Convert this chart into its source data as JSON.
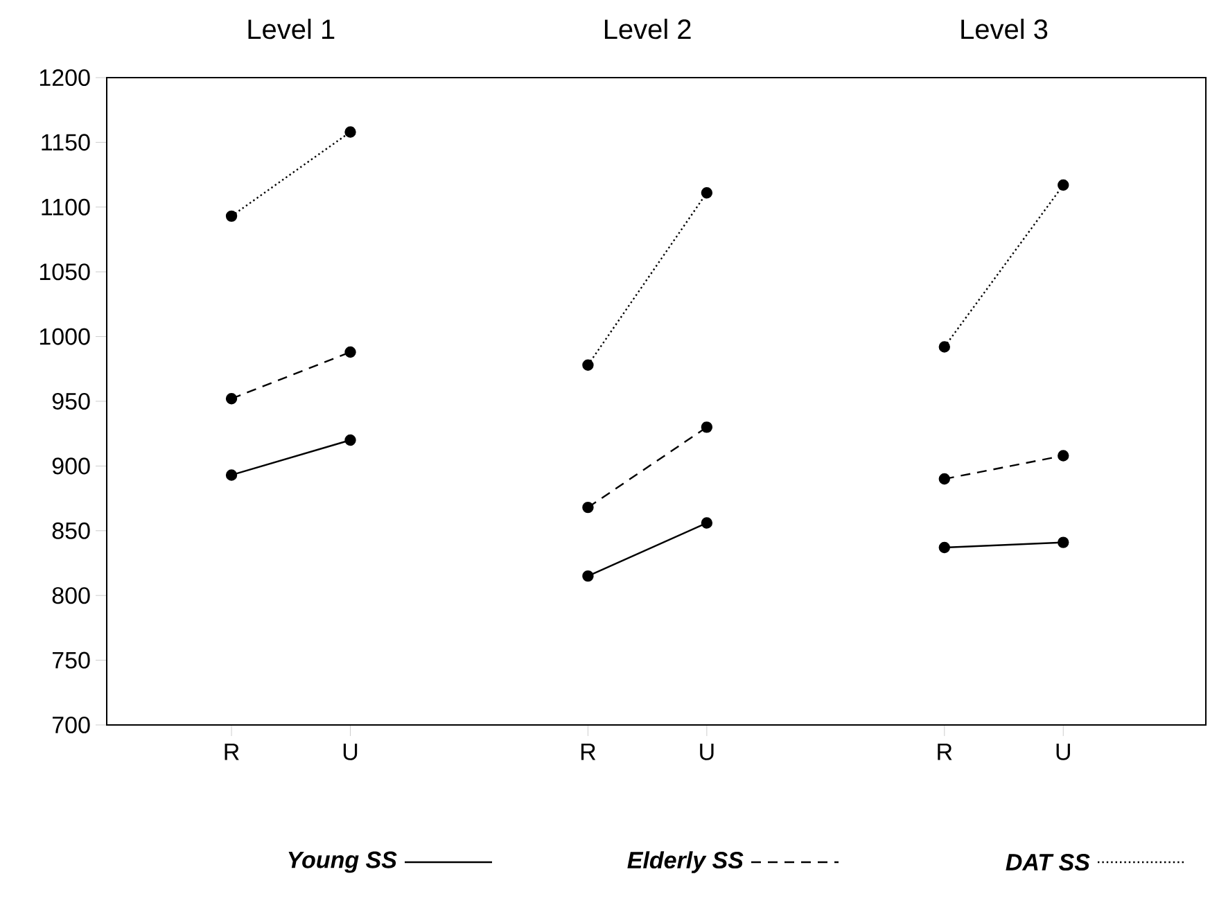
{
  "chart_data": {
    "type": "line",
    "categories": [
      "R",
      "U",
      null,
      "R",
      "U",
      null,
      "R",
      "U"
    ],
    "series": [
      {
        "name": "Young SS",
        "color": "#000000",
        "line_style": "solid",
        "values": [
          893,
          920,
          null,
          815,
          856,
          null,
          837,
          841
        ]
      },
      {
        "name": "Elderly SS",
        "color": "#000000",
        "line_style": "dashed",
        "values": [
          952,
          988,
          null,
          868,
          930,
          null,
          890,
          908
        ]
      },
      {
        "name": "DAT SS",
        "color": "#000000",
        "line_style": "dotted",
        "values": [
          1093,
          1158,
          null,
          978,
          1111,
          null,
          992,
          1117
        ]
      }
    ],
    "annotations": [
      "Level 1",
      "Level 2",
      "Level 3"
    ],
    "ylim": [
      700,
      1200
    ],
    "yticks": [
      700,
      750,
      800,
      850,
      900,
      950,
      1000,
      1050,
      1100,
      1150,
      1200
    ],
    "marker": "circle",
    "grid": false,
    "legend": "bottom"
  }
}
